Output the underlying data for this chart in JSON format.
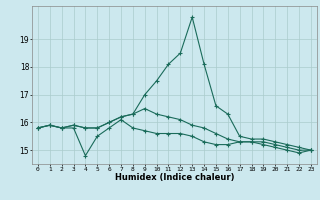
{
  "xlabel": "Humidex (Indice chaleur)",
  "background_color": "#cce8ee",
  "grid_color": "#aacccc",
  "line_color": "#1a6b5a",
  "x": [
    0,
    1,
    2,
    3,
    4,
    5,
    6,
    7,
    8,
    9,
    10,
    11,
    12,
    13,
    14,
    15,
    16,
    17,
    18,
    19,
    20,
    21,
    22,
    23
  ],
  "line1": [
    15.8,
    15.9,
    15.8,
    15.8,
    14.8,
    15.5,
    15.8,
    16.1,
    15.8,
    15.7,
    15.6,
    15.6,
    15.6,
    15.5,
    15.3,
    15.2,
    15.2,
    15.3,
    15.3,
    15.2,
    15.1,
    15.0,
    14.9,
    15.0
  ],
  "line2": [
    15.8,
    15.9,
    15.8,
    15.9,
    15.8,
    15.8,
    16.0,
    16.2,
    16.3,
    16.5,
    16.3,
    16.2,
    16.1,
    15.9,
    15.8,
    15.6,
    15.4,
    15.3,
    15.3,
    15.3,
    15.2,
    15.1,
    15.0,
    15.0
  ],
  "line3": [
    15.8,
    15.9,
    15.8,
    15.9,
    15.8,
    15.8,
    16.0,
    16.2,
    16.3,
    17.0,
    17.5,
    18.1,
    18.5,
    19.8,
    18.1,
    16.6,
    16.3,
    15.5,
    15.4,
    15.4,
    15.3,
    15.2,
    15.1,
    15.0
  ],
  "ylim": [
    14.5,
    20.2
  ],
  "yticks": [
    15,
    16,
    17,
    18,
    19
  ],
  "xlim": [
    -0.5,
    23.5
  ],
  "marker": "+",
  "markersize": 3,
  "linewidth": 0.8
}
